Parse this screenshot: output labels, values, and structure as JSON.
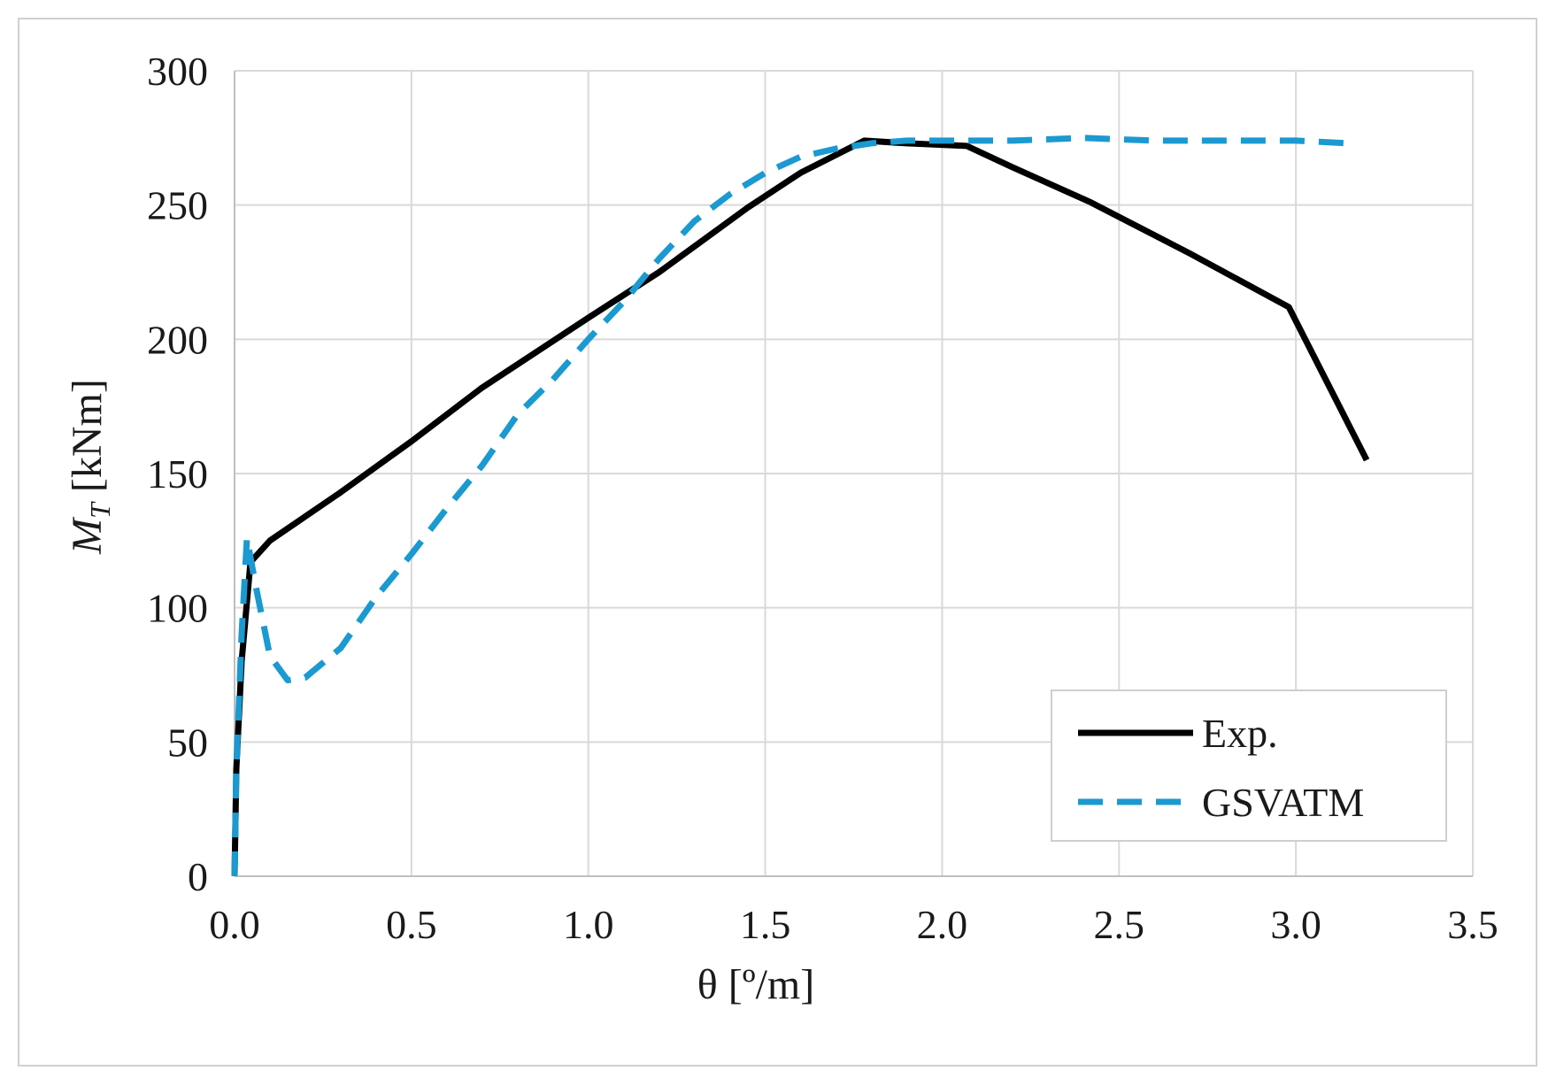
{
  "chart_data": {
    "type": "line",
    "title": "",
    "xlabel": "θ [º/m]",
    "ylabel": {
      "main": "M",
      "sub": "T",
      "unit": " [kNm]"
    },
    "xlim": [
      0,
      3.5
    ],
    "ylim": [
      0,
      300
    ],
    "x_ticks": [
      "0.0",
      "0.5",
      "1.0",
      "1.5",
      "2.0",
      "2.5",
      "3.0",
      "3.5"
    ],
    "y_ticks": [
      "0",
      "50",
      "100",
      "150",
      "200",
      "250",
      "300"
    ],
    "x_tick_values": [
      0,
      0.5,
      1.0,
      1.5,
      2.0,
      2.5,
      3.0,
      3.5
    ],
    "y_tick_values": [
      0,
      50,
      100,
      150,
      200,
      250,
      300
    ],
    "grid": true,
    "legend_position": "bottom-right",
    "series": [
      {
        "name": "Exp.",
        "color": "#000000",
        "style": "solid",
        "x": [
          0,
          0.005,
          0.02,
          0.045,
          0.1,
          0.3,
          0.5,
          0.7,
          1.0,
          1.2,
          1.45,
          1.6,
          1.78,
          1.9,
          2.07,
          2.2,
          2.42,
          2.7,
          2.98,
          3.2
        ],
        "y": [
          0,
          40,
          80,
          117,
          125,
          143,
          162,
          182,
          208,
          225,
          249,
          262,
          274,
          273,
          272,
          264,
          251,
          232,
          212,
          155
        ]
      },
      {
        "name": "GSVATM",
        "color": "#1b99d1",
        "style": "dashed",
        "x": [
          0,
          0.005,
          0.02,
          0.035,
          0.06,
          0.1,
          0.15,
          0.2,
          0.3,
          0.4,
          0.5,
          0.6,
          0.7,
          0.8,
          0.9,
          1.0,
          1.1,
          1.2,
          1.3,
          1.4,
          1.5,
          1.6,
          1.7,
          1.8,
          1.9,
          2.0,
          2.2,
          2.4,
          2.6,
          2.8,
          3.0,
          3.15
        ],
        "y": [
          0,
          40,
          90,
          126,
          108,
          82,
          73,
          74,
          85,
          104,
          120,
          137,
          153,
          172,
          185,
          200,
          214,
          230,
          244,
          254,
          262,
          268,
          271,
          273,
          274,
          274,
          274,
          275,
          274,
          274,
          274,
          273
        ]
      }
    ]
  }
}
